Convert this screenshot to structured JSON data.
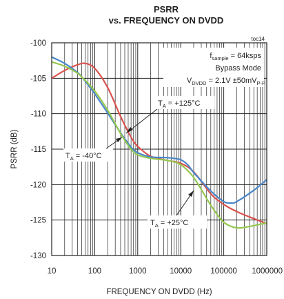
{
  "chart_data": {
    "type": "line",
    "title": "PSRR",
    "subtitle": "vs. FREQUENCY ON DVDD",
    "figure_id": "toc14",
    "xlabel": "FREQUENCY ON DVDD (Hz)",
    "ylabel": "PSRR (dB)",
    "xscale": "log",
    "xlim": [
      10,
      1000000
    ],
    "ylim": [
      -130,
      -100
    ],
    "x_ticks": [
      "10",
      "100",
      "1000",
      "10000",
      "100000",
      "1000000"
    ],
    "y_ticks": [
      "-100",
      "-105",
      "-110",
      "-115",
      "-120",
      "-125",
      "-130"
    ],
    "grid": true,
    "conditions": {
      "line1_main": "f",
      "line1_sub": "sample",
      "line1_rest": " = 64ksps",
      "line2": "Bypass Mode",
      "line3_main": "V",
      "line3_sub": "DVDD",
      "line3_rest": " = 2.1V ±50mV",
      "line3_sub2": "P-P"
    },
    "annotations": [
      {
        "prefix": "T",
        "sub": "A",
        "text": " = +125°C",
        "points_to": "+125°C"
      },
      {
        "prefix": "T",
        "sub": "A",
        "text": " = -40°C",
        "points_to": "-40°C"
      },
      {
        "prefix": "T",
        "sub": "A",
        "text": " = +25°C",
        "points_to": "+25°C"
      }
    ],
    "series": [
      {
        "label": "+125°C",
        "color": "#d9534f",
        "x": [
          10,
          20,
          40,
          60,
          100,
          200,
          400,
          700,
          1000,
          2000,
          5000,
          10000,
          20000,
          50000,
          100000,
          200000,
          500000,
          1000000
        ],
        "y": [
          -105,
          -103.9,
          -103.1,
          -102.9,
          -103.6,
          -106.3,
          -110.4,
          -113.3,
          -114.6,
          -116,
          -116.6,
          -117,
          -118.2,
          -121.3,
          -122.8,
          -123.8,
          -124.8,
          -125.5
        ]
      },
      {
        "label": "-40°C",
        "color": "#4a86c8",
        "x": [
          10,
          20,
          40,
          60,
          100,
          200,
          400,
          700,
          1000,
          2000,
          5000,
          10000,
          15000,
          20000,
          50000,
          100000,
          150000,
          200000,
          500000,
          1000000
        ],
        "y": [
          -102,
          -102.9,
          -104.2,
          -105.4,
          -107.2,
          -109.9,
          -112.7,
          -114.7,
          -115.5,
          -116.1,
          -116.2,
          -116.5,
          -117.3,
          -118.3,
          -120.9,
          -122.4,
          -122.6,
          -122.4,
          -120.8,
          -119.3
        ]
      },
      {
        "label": "+25°C",
        "color": "#96c850",
        "x": [
          10,
          20,
          40,
          60,
          100,
          200,
          400,
          700,
          1000,
          2000,
          5000,
          10000,
          20000,
          50000,
          100000,
          200000,
          400000,
          700000,
          1000000
        ],
        "y": [
          -102.7,
          -103.3,
          -104.3,
          -105.3,
          -106.8,
          -109.5,
          -112.8,
          -115,
          -115.8,
          -116.3,
          -116.6,
          -117.2,
          -119,
          -122.9,
          -125.3,
          -126.1,
          -125.9,
          -125.6,
          -125.4
        ]
      }
    ]
  }
}
